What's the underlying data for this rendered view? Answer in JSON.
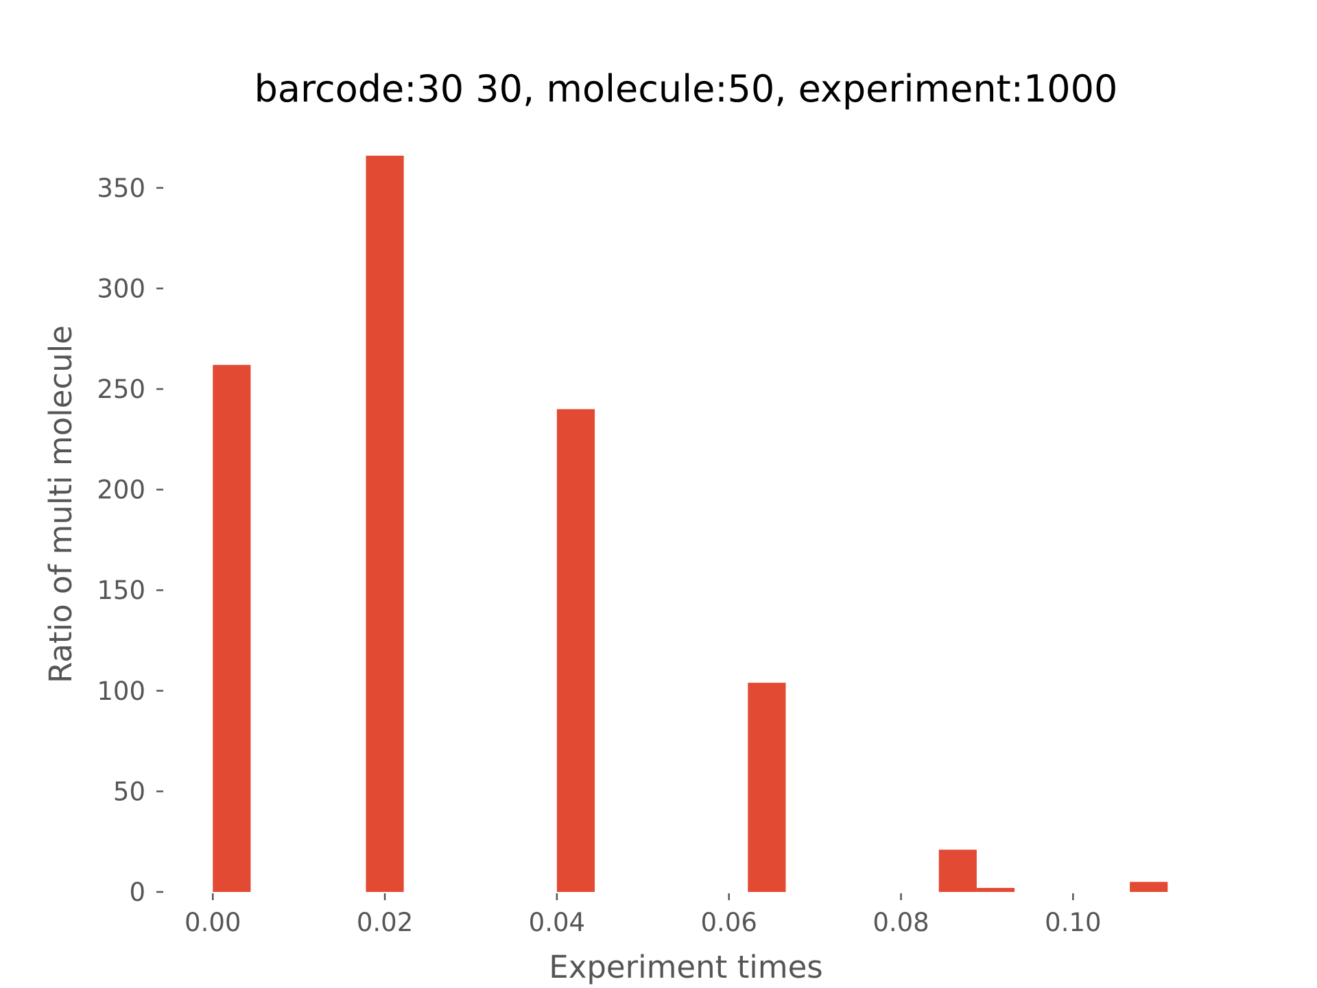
{
  "chart_data": {
    "type": "bar",
    "title": "barcode:30 30, molecule:50, experiment:1000",
    "xlabel": "Experiment times",
    "ylabel": "Ratio of multi molecule",
    "xlim": [
      -0.0056,
      0.1156
    ],
    "ylim": [
      0,
      382
    ],
    "bin_width": 0.0044,
    "bins": [
      {
        "x_start": 0.0,
        "x_end": 0.0044,
        "value": 262
      },
      {
        "x_start": 0.0178,
        "x_end": 0.0222,
        "value": 366
      },
      {
        "x_start": 0.04,
        "x_end": 0.0444,
        "value": 240
      },
      {
        "x_start": 0.0622,
        "x_end": 0.0666,
        "value": 104
      },
      {
        "x_start": 0.0844,
        "x_end": 0.0888,
        "value": 21
      },
      {
        "x_start": 0.0888,
        "x_end": 0.0932,
        "value": 2
      },
      {
        "x_start": 0.1066,
        "x_end": 0.111,
        "value": 5
      }
    ],
    "x_ticks": [
      {
        "value": 0.0,
        "label": "0.00"
      },
      {
        "value": 0.02,
        "label": "0.02"
      },
      {
        "value": 0.04,
        "label": "0.04"
      },
      {
        "value": 0.06,
        "label": "0.06"
      },
      {
        "value": 0.08,
        "label": "0.08"
      },
      {
        "value": 0.1,
        "label": "0.10"
      }
    ],
    "y_ticks": [
      {
        "value": 0,
        "label": "0"
      },
      {
        "value": 50,
        "label": "50"
      },
      {
        "value": 100,
        "label": "100"
      },
      {
        "value": 150,
        "label": "150"
      },
      {
        "value": 200,
        "label": "200"
      },
      {
        "value": 250,
        "label": "250"
      },
      {
        "value": 300,
        "label": "300"
      },
      {
        "value": 350,
        "label": "350"
      }
    ],
    "grid": false,
    "legend": "none",
    "colors": {
      "bar": "#E24A33",
      "text": "#555555",
      "title": "#000000"
    }
  }
}
